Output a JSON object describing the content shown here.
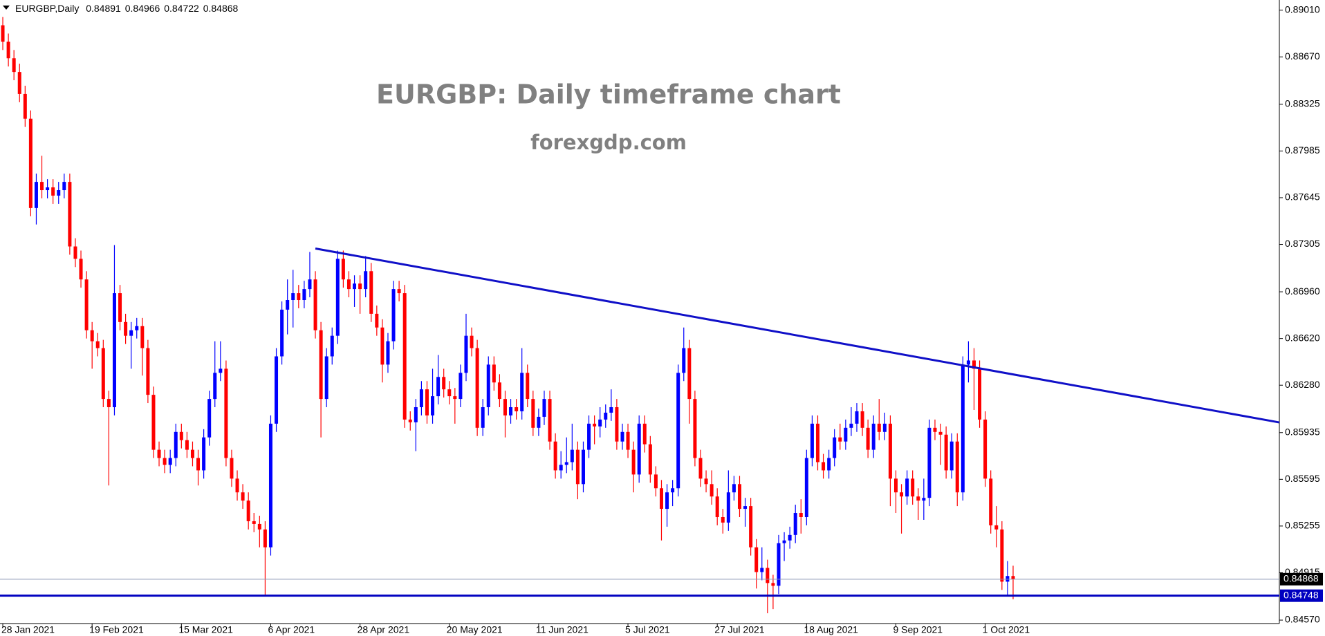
{
  "chart_data": {
    "type": "candlestick",
    "symbol": "EURGBP,Daily",
    "title": "EURGBP: Daily timeframe chart",
    "subtitle": "forexgdp.com",
    "up_color": "#0000ff",
    "down_color": "#ff0000",
    "trendline_color": "#1010c8",
    "support_color": "#0000c0",
    "open": [
      0.889,
      0.8878,
      0.8866,
      0.8856,
      0.884,
      0.8822,
      0.8757,
      0.8776,
      0.877,
      0.8772,
      0.8766,
      0.877,
      0.8776,
      0.8729,
      0.872,
      0.8705,
      0.8668,
      0.866,
      0.8655,
      0.8618,
      0.8612,
      0.8695,
      0.8674,
      0.8664,
      0.8668,
      0.8671,
      0.8655,
      0.8621,
      0.8581,
      0.8575,
      0.857,
      0.8575,
      0.8594,
      0.8588,
      0.8581,
      0.8575,
      0.8566,
      0.859,
      0.8618,
      0.8637,
      0.864,
      0.8575,
      0.856,
      0.855,
      0.8544,
      0.8529,
      0.8527,
      0.8523,
      0.851,
      0.86,
      0.8649,
      0.8683,
      0.869,
      0.8695,
      0.869,
      0.8698,
      0.8705,
      0.8668,
      0.8618,
      0.8649,
      0.8664,
      0.872,
      0.8705,
      0.8698,
      0.8702,
      0.8698,
      0.8711,
      0.868,
      0.867,
      0.8643,
      0.866,
      0.8698,
      0.8695,
      0.8603,
      0.8601,
      0.8612,
      0.8625,
      0.8606,
      0.862,
      0.8634,
      0.8625,
      0.862,
      0.8618,
      0.8637,
      0.8664,
      0.8655,
      0.8597,
      0.8612,
      0.8643,
      0.863,
      0.8618,
      0.8606,
      0.8612,
      0.8609,
      0.8637,
      0.8618,
      0.8597,
      0.8605,
      0.8618,
      0.8587,
      0.8566,
      0.857,
      0.8572,
      0.8581,
      0.8556,
      0.8581,
      0.86,
      0.8598,
      0.8603,
      0.8608,
      0.8612,
      0.8587,
      0.8594,
      0.8581,
      0.8563,
      0.86,
      0.8585,
      0.8563,
      0.8553,
      0.8538,
      0.855,
      0.8553,
      0.8637,
      0.8655,
      0.8618,
      0.8575,
      0.856,
      0.8556,
      0.8547,
      0.8532,
      0.8528,
      0.855,
      0.8556,
      0.8538,
      0.854,
      0.851,
      0.8492,
      0.8495,
      0.8484,
      0.8482,
      0.8513,
      0.8515,
      0.8519,
      0.8535,
      0.8532,
      0.8575,
      0.86,
      0.8572,
      0.8566,
      0.8575,
      0.859,
      0.8587,
      0.8597,
      0.86,
      0.8609,
      0.8597,
      0.8581,
      0.86,
      0.8594,
      0.86,
      0.856,
      0.855,
      0.8547,
      0.856,
      0.8547,
      0.8544,
      0.8546,
      0.8597,
      0.8594,
      0.8592,
      0.8566,
      0.8587,
      0.855,
      0.8643,
      0.8646,
      0.864,
      0.8603,
      0.856,
      0.8526,
      0.8523,
      0.8485,
      0.84891
    ],
    "high": [
      0.8896,
      0.8884,
      0.8872,
      0.8862,
      0.8846,
      0.8828,
      0.8782,
      0.8795,
      0.8778,
      0.8778,
      0.8776,
      0.8782,
      0.8782,
      0.8735,
      0.8726,
      0.8711,
      0.8674,
      0.8666,
      0.8661,
      0.8624,
      0.873,
      0.8701,
      0.868,
      0.8674,
      0.8677,
      0.8677,
      0.8661,
      0.8627,
      0.8587,
      0.8581,
      0.8581,
      0.86,
      0.86,
      0.8594,
      0.8587,
      0.8581,
      0.8596,
      0.8624,
      0.866,
      0.866,
      0.8646,
      0.8581,
      0.8566,
      0.8556,
      0.855,
      0.8535,
      0.8533,
      0.8529,
      0.8606,
      0.8655,
      0.8689,
      0.8705,
      0.8712,
      0.8701,
      0.8704,
      0.8725,
      0.8711,
      0.8674,
      0.8655,
      0.867,
      0.8726,
      0.8726,
      0.8711,
      0.8708,
      0.8708,
      0.8722,
      0.8717,
      0.8686,
      0.8676,
      0.8666,
      0.8704,
      0.8704,
      0.8701,
      0.8609,
      0.8618,
      0.8631,
      0.8631,
      0.864,
      0.865,
      0.864,
      0.8631,
      0.8626,
      0.8643,
      0.868,
      0.867,
      0.8661,
      0.8618,
      0.8649,
      0.8649,
      0.8636,
      0.8624,
      0.8618,
      0.8618,
      0.8655,
      0.8643,
      0.8624,
      0.8611,
      0.8624,
      0.8624,
      0.8593,
      0.858,
      0.859,
      0.86,
      0.8587,
      0.8587,
      0.8606,
      0.8606,
      0.8612,
      0.8614,
      0.8625,
      0.8618,
      0.86,
      0.86,
      0.8587,
      0.8606,
      0.8606,
      0.8591,
      0.8569,
      0.8559,
      0.8556,
      0.8559,
      0.8643,
      0.867,
      0.8661,
      0.8624,
      0.8581,
      0.8566,
      0.8566,
      0.8553,
      0.8538,
      0.8566,
      0.8562,
      0.8562,
      0.8546,
      0.8546,
      0.8516,
      0.851,
      0.8501,
      0.849,
      0.8519,
      0.8521,
      0.8525,
      0.8541,
      0.8545,
      0.8581,
      0.8606,
      0.8606,
      0.8578,
      0.8581,
      0.8596,
      0.86,
      0.8603,
      0.8612,
      0.8615,
      0.8615,
      0.8603,
      0.8606,
      0.8618,
      0.8608,
      0.8606,
      0.8566,
      0.8556,
      0.8566,
      0.8566,
      0.8553,
      0.856,
      0.8603,
      0.8603,
      0.86,
      0.8598,
      0.8593,
      0.8593,
      0.8649,
      0.866,
      0.8655,
      0.8646,
      0.8609,
      0.8566,
      0.854,
      0.8529,
      0.85,
      0.84966
    ],
    "low": [
      0.8872,
      0.886,
      0.885,
      0.8834,
      0.8816,
      0.8751,
      0.8745,
      0.8764,
      0.8764,
      0.876,
      0.876,
      0.8764,
      0.8723,
      0.8714,
      0.8699,
      0.8662,
      0.864,
      0.8649,
      0.8612,
      0.8555,
      0.8606,
      0.8668,
      0.8658,
      0.864,
      0.8662,
      0.8635,
      0.8615,
      0.8575,
      0.8569,
      0.8564,
      0.8564,
      0.8569,
      0.8582,
      0.8575,
      0.8569,
      0.8555,
      0.856,
      0.8584,
      0.8612,
      0.8631,
      0.8569,
      0.8554,
      0.8544,
      0.8538,
      0.8523,
      0.8521,
      0.851,
      0.8475,
      0.8504,
      0.8594,
      0.8643,
      0.8665,
      0.867,
      0.8684,
      0.8684,
      0.8692,
      0.8662,
      0.859,
      0.8612,
      0.8643,
      0.8658,
      0.8699,
      0.8692,
      0.8685,
      0.868,
      0.8692,
      0.8674,
      0.8664,
      0.863,
      0.8637,
      0.8654,
      0.8689,
      0.8597,
      0.8595,
      0.858,
      0.8606,
      0.86,
      0.86,
      0.8614,
      0.8619,
      0.8614,
      0.86,
      0.8612,
      0.8631,
      0.8649,
      0.8591,
      0.8591,
      0.8606,
      0.8624,
      0.8612,
      0.859,
      0.86,
      0.8603,
      0.8603,
      0.8612,
      0.8591,
      0.8591,
      0.8599,
      0.8581,
      0.856,
      0.856,
      0.8564,
      0.8566,
      0.8545,
      0.855,
      0.8575,
      0.8585,
      0.859,
      0.8597,
      0.8602,
      0.8581,
      0.8581,
      0.8575,
      0.855,
      0.8557,
      0.8579,
      0.8557,
      0.8547,
      0.8515,
      0.8525,
      0.854,
      0.8547,
      0.8631,
      0.86,
      0.8569,
      0.8554,
      0.855,
      0.8541,
      0.8526,
      0.852,
      0.8522,
      0.8544,
      0.8532,
      0.8525,
      0.8504,
      0.848,
      0.8486,
      0.8462,
      0.8465,
      0.8476,
      0.85,
      0.8509,
      0.8513,
      0.852,
      0.8526,
      0.8569,
      0.8566,
      0.856,
      0.856,
      0.8569,
      0.8581,
      0.8581,
      0.8591,
      0.8594,
      0.8591,
      0.8575,
      0.8575,
      0.8588,
      0.8588,
      0.854,
      0.8535,
      0.852,
      0.8541,
      0.8541,
      0.853,
      0.853,
      0.854,
      0.8588,
      0.857,
      0.856,
      0.856,
      0.854,
      0.8544,
      0.863,
      0.861,
      0.8597,
      0.8554,
      0.852,
      0.851,
      0.8479,
      0.8475,
      0.84722
    ],
    "close": [
      0.8878,
      0.8866,
      0.8856,
      0.884,
      0.8822,
      0.8757,
      0.8776,
      0.877,
      0.8772,
      0.8766,
      0.877,
      0.8776,
      0.8729,
      0.872,
      0.8705,
      0.8668,
      0.866,
      0.8655,
      0.8618,
      0.8612,
      0.8695,
      0.8674,
      0.8664,
      0.8668,
      0.8671,
      0.8655,
      0.8621,
      0.8581,
      0.8575,
      0.857,
      0.8575,
      0.8594,
      0.8588,
      0.8581,
      0.8575,
      0.8566,
      0.859,
      0.8618,
      0.8637,
      0.864,
      0.8575,
      0.856,
      0.855,
      0.8544,
      0.8529,
      0.8527,
      0.8523,
      0.851,
      0.86,
      0.8649,
      0.8683,
      0.869,
      0.8695,
      0.869,
      0.8698,
      0.8705,
      0.8668,
      0.8618,
      0.8649,
      0.8664,
      0.872,
      0.8705,
      0.8698,
      0.8702,
      0.8698,
      0.8711,
      0.868,
      0.867,
      0.8643,
      0.866,
      0.8698,
      0.8695,
      0.8603,
      0.8601,
      0.8612,
      0.8625,
      0.8606,
      0.862,
      0.8634,
      0.8625,
      0.862,
      0.8618,
      0.8637,
      0.8664,
      0.8655,
      0.8597,
      0.8612,
      0.8643,
      0.863,
      0.8618,
      0.8606,
      0.8612,
      0.8609,
      0.8637,
      0.8618,
      0.8597,
      0.8605,
      0.8618,
      0.8587,
      0.8566,
      0.857,
      0.8572,
      0.8581,
      0.8556,
      0.8581,
      0.86,
      0.8598,
      0.8603,
      0.8608,
      0.8612,
      0.8587,
      0.8594,
      0.8581,
      0.8563,
      0.86,
      0.8585,
      0.8563,
      0.8553,
      0.8538,
      0.855,
      0.8553,
      0.8637,
      0.8655,
      0.8618,
      0.8575,
      0.856,
      0.8556,
      0.8547,
      0.8532,
      0.8528,
      0.855,
      0.8556,
      0.8538,
      0.854,
      0.851,
      0.8492,
      0.8495,
      0.8484,
      0.8482,
      0.8513,
      0.8515,
      0.8519,
      0.8535,
      0.8532,
      0.8575,
      0.86,
      0.8572,
      0.8566,
      0.8575,
      0.859,
      0.8587,
      0.8597,
      0.86,
      0.8609,
      0.8597,
      0.8581,
      0.86,
      0.8594,
      0.86,
      0.856,
      0.855,
      0.8547,
      0.856,
      0.8547,
      0.8544,
      0.8546,
      0.8597,
      0.8594,
      0.8592,
      0.8566,
      0.8587,
      0.855,
      0.8643,
      0.8646,
      0.864,
      0.8603,
      0.856,
      0.8526,
      0.8523,
      0.8485,
      0.84891,
      0.84868
    ],
    "xlim": [
      -0.5,
      228.7
    ],
    "xticks": [
      {
        "value": 0,
        "label": "28 Jan 2021"
      },
      {
        "value": 16,
        "label": "19 Feb 2021"
      },
      {
        "value": 32,
        "label": "15 Mar 2021"
      },
      {
        "value": 48,
        "label": "6 Apr 2021"
      },
      {
        "value": 64,
        "label": "28 Apr 2021"
      },
      {
        "value": 80,
        "label": "20 May 2021"
      },
      {
        "value": 96,
        "label": "11 Jun 2021"
      },
      {
        "value": 112,
        "label": "5 Jul 2021"
      },
      {
        "value": 128,
        "label": "27 Jul 2021"
      },
      {
        "value": 144,
        "label": "18 Aug 2021"
      },
      {
        "value": 160,
        "label": "9 Sep 2021"
      },
      {
        "value": 176,
        "label": "1 Oct 2021"
      }
    ],
    "ylim": [
      0.84545,
      0.89084
    ],
    "yticks": [
      {
        "value": 0.8901,
        "label": "0.89010"
      },
      {
        "value": 0.8867,
        "label": "0.88670"
      },
      0.88325,
      0.87985,
      0.87645,
      0.87305,
      {
        "value": 0.8696,
        "label": "0.86960"
      },
      {
        "value": 0.8662,
        "label": "0.86620"
      },
      {
        "value": 0.8628,
        "label": "0.86280"
      },
      0.85935,
      0.85595,
      0.85255,
      0.84915,
      {
        "value": 0.8457,
        "label": "0.84570"
      }
    ],
    "support_level": 0.84748,
    "trendline": {
      "x": [
        56,
        228.7
      ],
      "y": [
        0.87275,
        0.86009
      ]
    }
  }
}
